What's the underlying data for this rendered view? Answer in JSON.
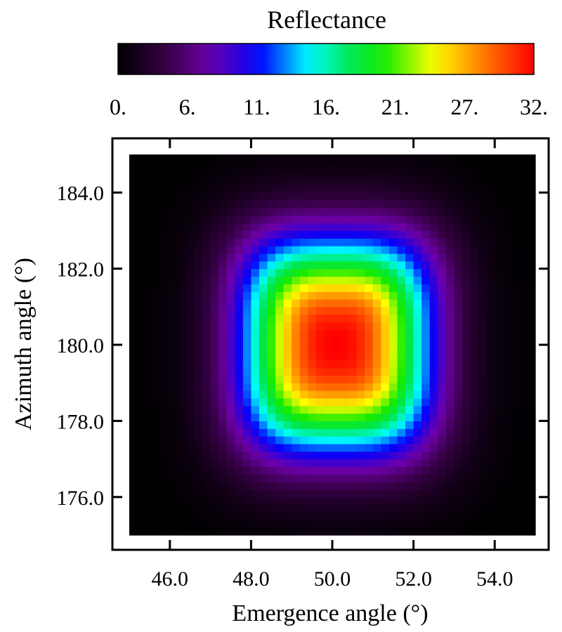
{
  "chart_data": {
    "type": "heatmap",
    "title": "",
    "colorbar": {
      "label": "Reflectance",
      "range": [
        0,
        32
      ],
      "tick_labels": [
        "0.",
        "6.",
        "11.",
        "16.",
        "21.",
        "27.",
        "32."
      ],
      "colormap": "rainbow (black-purple-blue-cyan-green-yellow-orange-red)"
    },
    "xlabel": "Emergence angle  (°)",
    "ylabel": "Azimuth angle (°)",
    "xlim": [
      45.0,
      55.0
    ],
    "ylim": [
      175.0,
      185.0
    ],
    "x_ticks": [
      {
        "value": 46.0,
        "label": "46.0"
      },
      {
        "value": 48.0,
        "label": "48.0"
      },
      {
        "value": 50.0,
        "label": "50.0"
      },
      {
        "value": 52.0,
        "label": "52.0"
      },
      {
        "value": 54.0,
        "label": "54.0"
      }
    ],
    "y_ticks": [
      {
        "value": 176.0,
        "label": "176.0"
      },
      {
        "value": 178.0,
        "label": "178.0"
      },
      {
        "value": 180.0,
        "label": "180.0"
      },
      {
        "value": 182.0,
        "label": "182.0"
      },
      {
        "value": 184.0,
        "label": "184.0"
      }
    ],
    "grid": false,
    "field": {
      "description": "Reflectance peak around emergence 50.1°, azimuth 180°",
      "center": [
        50.1,
        180.0
      ],
      "peak_value": 32,
      "grid_x": [
        45.0,
        55.0,
        50
      ],
      "grid_y": [
        175.0,
        185.0,
        50
      ]
    }
  }
}
